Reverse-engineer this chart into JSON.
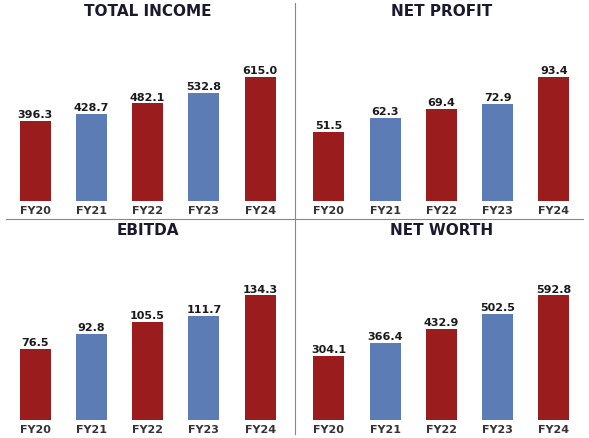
{
  "charts": [
    {
      "title": "TOTAL INCOME",
      "values": [
        396.3,
        428.7,
        482.1,
        532.8,
        615.0
      ],
      "categories": [
        "FY20",
        "FY21",
        "FY22",
        "FY23",
        "FY24"
      ],
      "colors": [
        "#9B1C1C",
        "#5B7CB5",
        "#9B1C1C",
        "#5B7CB5",
        "#9B1C1C"
      ]
    },
    {
      "title": "NET PROFIT",
      "values": [
        51.5,
        62.3,
        69.4,
        72.9,
        93.4
      ],
      "categories": [
        "FY20",
        "FY21",
        "FY22",
        "FY23",
        "FY24"
      ],
      "colors": [
        "#9B1C1C",
        "#5B7CB5",
        "#9B1C1C",
        "#5B7CB5",
        "#9B1C1C"
      ]
    },
    {
      "title": "EBITDA",
      "values": [
        76.5,
        92.8,
        105.5,
        111.7,
        134.3
      ],
      "categories": [
        "FY20",
        "FY21",
        "FY22",
        "FY23",
        "FY24"
      ],
      "colors": [
        "#9B1C1C",
        "#5B7CB5",
        "#9B1C1C",
        "#5B7CB5",
        "#9B1C1C"
      ]
    },
    {
      "title": "NET WORTH",
      "values": [
        304.1,
        366.4,
        432.9,
        502.5,
        592.8
      ],
      "categories": [
        "FY20",
        "FY21",
        "FY22",
        "FY23",
        "FY24"
      ],
      "colors": [
        "#9B1C1C",
        "#5B7CB5",
        "#9B1C1C",
        "#5B7CB5",
        "#9B1C1C"
      ]
    }
  ],
  "background_color": "#FFFFFF",
  "title_fontsize": 11,
  "label_fontsize": 8,
  "value_fontsize": 8,
  "bar_width": 0.55,
  "ylim_factor": 1.45,
  "divider_color": "#888888"
}
